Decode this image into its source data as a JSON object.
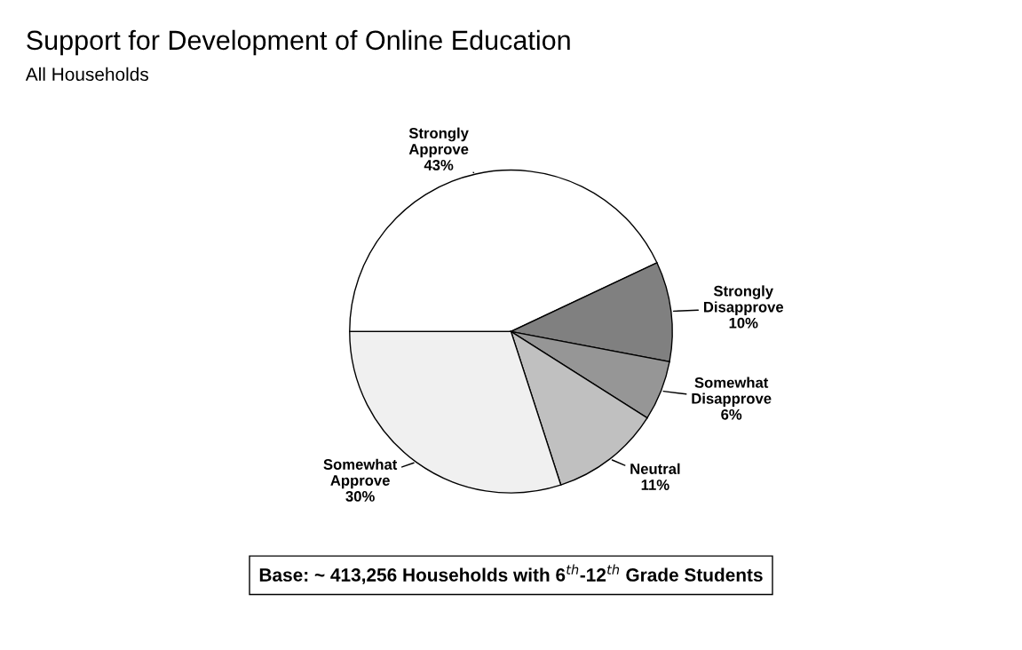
{
  "chart_data": {
    "type": "pie",
    "title": "Support for Development of Online Education",
    "subtitle": "All Households",
    "categories": [
      "Strongly Approve",
      "Strongly Disapprove",
      "Somewhat Disapprove",
      "Neutral",
      "Somewhat Approve"
    ],
    "values": [
      43,
      10,
      6,
      11,
      30
    ],
    "value_labels": [
      "43%",
      "10%",
      "6%",
      "11%",
      "30%"
    ],
    "colors": [
      "#ffffff",
      "#808080",
      "#969696",
      "#c0c0c0",
      "#f0f0f0"
    ],
    "annotations": [
      "Base: ~ 413,256 Households with 6$^{th}$-12$^{th}$ Grade Students"
    ]
  }
}
